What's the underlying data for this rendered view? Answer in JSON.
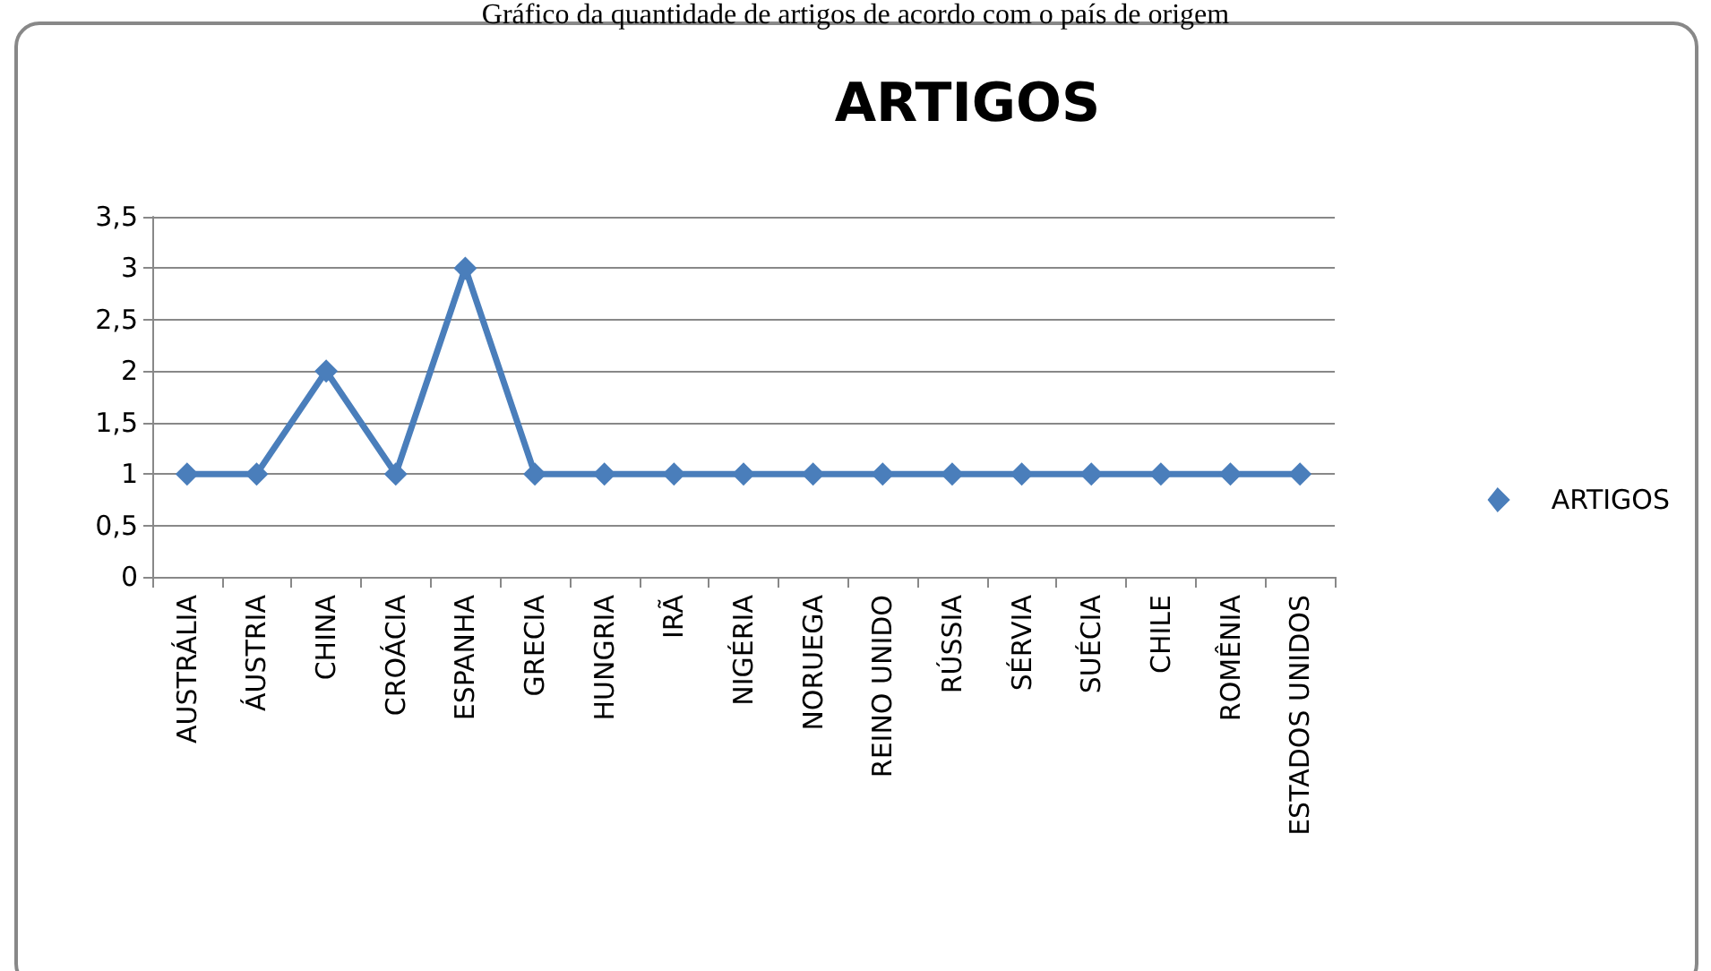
{
  "chart_data": {
    "type": "line",
    "title": "ARTIGOS",
    "annotations": [
      "Gráfico da quantidade de artigos de acordo com o país de origem"
    ],
    "categories": [
      "AUSTRÁLIA",
      "ÁUSTRIA",
      "CHINA",
      "CROÁCIA",
      "ESPANHA",
      "GRECIA",
      "HUNGRIA",
      "IRÃ",
      "NIGÉRIA",
      "NORUEGA",
      "REINO UNIDO",
      "RÚSSIA",
      "SÉRVIA",
      "SUÉCIA",
      "CHILE",
      "ROMÊNIA",
      "ESTADOS UNIDOS"
    ],
    "series": [
      {
        "name": "ARTIGOS",
        "color": "#4a7ebb",
        "values": [
          1,
          1,
          2,
          1,
          3,
          1,
          1,
          1,
          1,
          1,
          1,
          1,
          1,
          1,
          1,
          1,
          1
        ]
      }
    ],
    "ylim": [
      0,
      3.5
    ],
    "yticks": [
      0,
      {
        "value": 0.5,
        "label": "0,5"
      },
      1,
      {
        "value": 1.5,
        "label": "1,5"
      },
      2,
      {
        "value": 2.5,
        "label": "2,5"
      },
      3,
      {
        "value": 3.5,
        "label": "3,5"
      }
    ],
    "grid": "y",
    "legend": "right",
    "marker": "diamond",
    "line_style": "solid"
  }
}
